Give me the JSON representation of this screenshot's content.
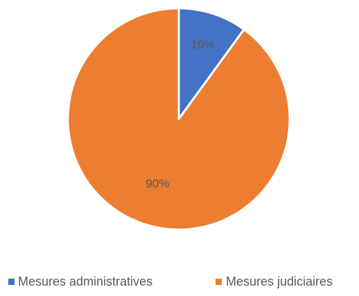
{
  "chart_data": {
    "type": "pie",
    "categories": [
      "Mesures administratives",
      "Mesures judiciaires"
    ],
    "values": [
      10,
      90
    ],
    "data_labels": [
      "10%",
      "90%"
    ],
    "colors": [
      "#4472C4",
      "#ED7D31"
    ],
    "slice_border_color": "#ffffff",
    "start_angle_deg": 0,
    "direction": "clockwise",
    "legend_position": "bottom",
    "title": ""
  }
}
